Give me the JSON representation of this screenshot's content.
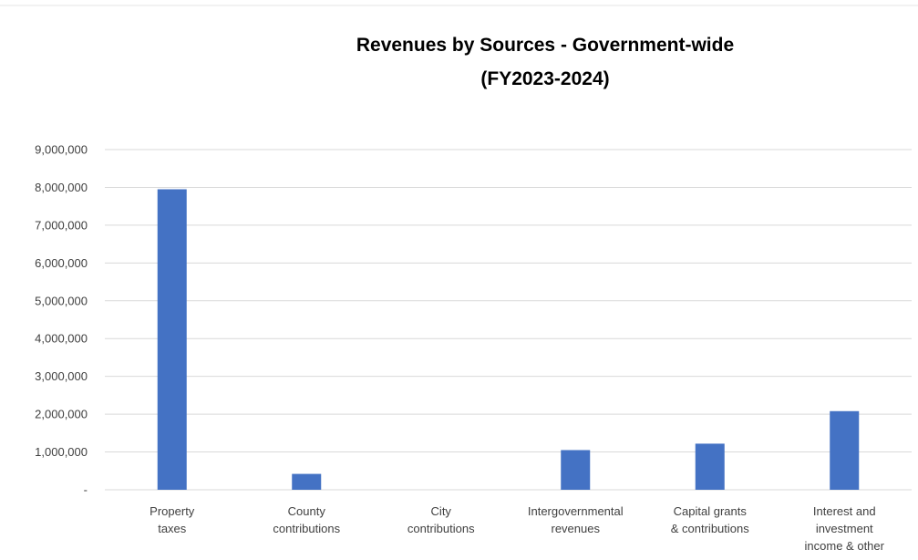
{
  "chart_data": {
    "type": "bar",
    "title_lines": [
      "Revenues by Sources - Government-wide",
      "(FY2023-2024)"
    ],
    "xlabel": "",
    "ylabel": "",
    "categories": [
      [
        "Property",
        "taxes"
      ],
      [
        "County",
        "contributions"
      ],
      [
        "City",
        "contributions"
      ],
      [
        "Intergovernmental",
        "revenues"
      ],
      [
        "Capital grants",
        "& contributions"
      ],
      [
        "Interest and",
        "investment",
        "income & other"
      ]
    ],
    "values": [
      7950000,
      420000,
      0,
      1050000,
      1220000,
      2080000
    ],
    "ylim": [
      0,
      9000000
    ],
    "yticks": [
      0,
      1000000,
      2000000,
      3000000,
      4000000,
      5000000,
      6000000,
      7000000,
      8000000,
      9000000
    ],
    "ytick_labels": [
      "-",
      "1,000,000",
      "2,000,000",
      "3,000,000",
      "4,000,000",
      "5,000,000",
      "6,000,000",
      "7,000,000",
      "8,000,000",
      "9,000,000"
    ],
    "grid": true,
    "legend": "none",
    "bar_color": "#4472c4"
  }
}
